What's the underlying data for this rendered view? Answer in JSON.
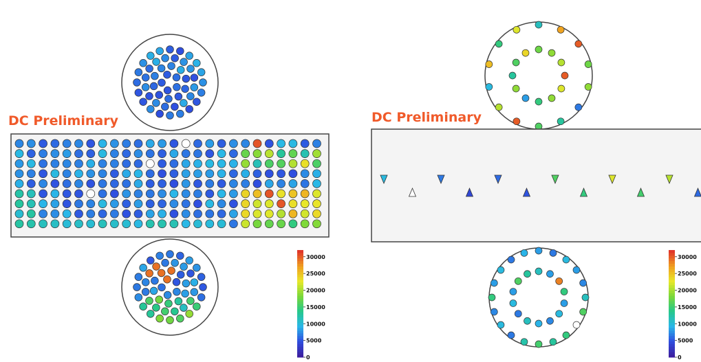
{
  "panels": [
    {
      "label": "DC Preliminary",
      "colorbar": {
        "ticks": [
          "30000",
          "25000",
          "20000",
          "15000",
          "10000",
          "5000",
          "0"
        ],
        "max": 32000
      }
    },
    {
      "label": "DC Preliminary",
      "colorbar": {
        "ticks": [
          "30000",
          "25000",
          "20000",
          "15000",
          "10000",
          "5000",
          "0"
        ],
        "max": 32000
      }
    }
  ],
  "colors": {
    "border": "#444444",
    "panel_fill": "#f4f4f4",
    "label": "#f05a2a",
    "scale": [
      "#3c1fa0",
      "#2f4fe0",
      "#2ab8e8",
      "#26c88a",
      "#7ad83a",
      "#e8e82a",
      "#f0a020",
      "#e0382a"
    ]
  },
  "detectors": {
    "left": {
      "grid": {
        "rows": 9,
        "cols": 26,
        "hot_cols_from": 19,
        "hot_rows": [
          1,
          2,
          5,
          6,
          7,
          8
        ],
        "mid_rows": [
          5,
          6,
          7
        ],
        "white": [
          [
            0,
            14
          ],
          [
            2,
            11
          ],
          [
            5,
            6
          ]
        ],
        "red": [
          [
            0,
            20
          ],
          [
            5,
            21
          ],
          [
            6,
            22
          ]
        ]
      },
      "top_cap": {
        "rings": [
          [
            48,
            20
          ],
          [
            36,
            16
          ],
          [
            24,
            10
          ],
          [
            12,
            5
          ]
        ],
        "hot": []
      },
      "bottom_cap": {
        "rings": [
          [
            48,
            20
          ],
          [
            36,
            16
          ],
          [
            24,
            10
          ],
          [
            12,
            5
          ]
        ],
        "hot": [
          [
            2,
            6
          ],
          [
            2,
            7
          ],
          [
            1,
            9
          ],
          [
            1,
            10
          ],
          [
            3,
            3
          ]
        ]
      }
    },
    "right": {
      "markers": [
        {
          "dir": "down",
          "level": 0.3
        },
        {
          "dir": "up",
          "level": -1
        },
        {
          "dir": "down",
          "level": 0.2
        },
        {
          "dir": "up",
          "level": 0.12
        },
        {
          "dir": "down",
          "level": 0.18
        },
        {
          "dir": "up",
          "level": 0.15
        },
        {
          "dir": "down",
          "level": 0.5
        },
        {
          "dir": "up",
          "level": 0.45
        },
        {
          "dir": "down",
          "level": 0.7
        },
        {
          "dir": "up",
          "level": 0.48
        },
        {
          "dir": "down",
          "level": 0.65
        },
        {
          "dir": "up",
          "level": 0.18
        }
      ],
      "top_cap": {
        "outer": [
          0.35,
          0.85,
          0.95,
          0.55,
          0.6,
          0.2,
          0.4,
          0.5,
          0.95,
          0.65,
          0.3,
          0.8,
          0.45,
          0.7
        ],
        "inner": [
          0.55,
          0.6,
          0.65,
          0.95,
          0.7,
          0.6,
          0.45,
          0.25,
          0.6,
          0.4,
          0.5,
          0.75
        ]
      },
      "bottom_cap": {
        "outer": [
          0.25,
          0.2,
          0.3,
          0.25,
          0.22,
          0.35,
          0.5,
          -1,
          0.45,
          0.4,
          0.48,
          0.38,
          0.2,
          0.3,
          0.22,
          0.45,
          0.25,
          0.3,
          0.2,
          0.28
        ],
        "inner": [
          0.35,
          0.25,
          0.9,
          0.45,
          0.25,
          0.3,
          0.22,
          0.28,
          0.35,
          0.2,
          0.3,
          0.25,
          0.5,
          0.4
        ]
      }
    }
  }
}
